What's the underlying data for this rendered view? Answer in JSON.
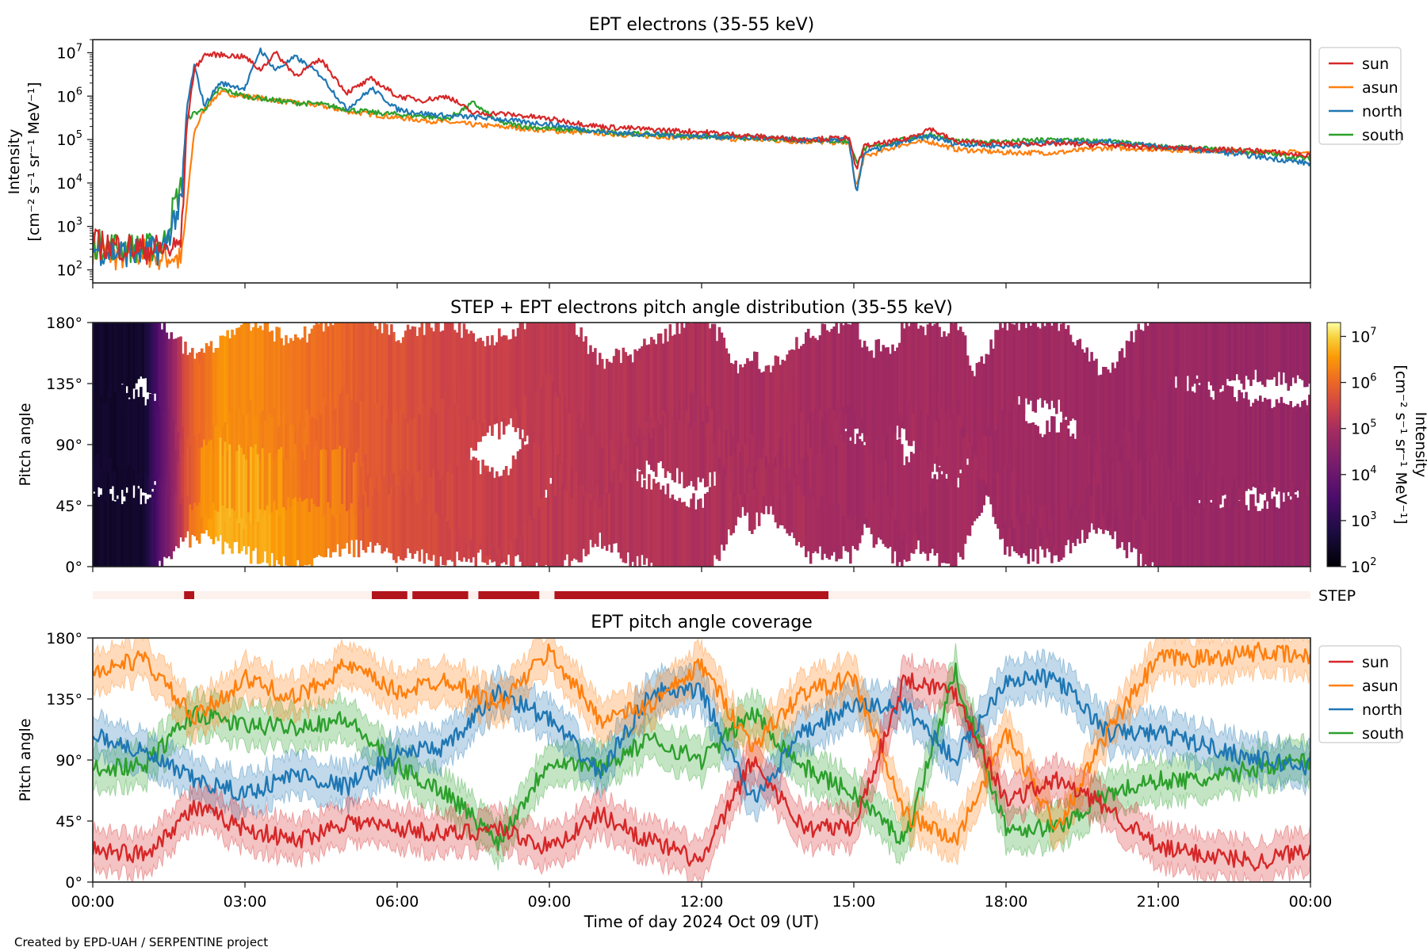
{
  "figure": {
    "footer": "Created by EPD-UAH / SERPENTINE project",
    "xlabel": "Time of day 2024 Oct 09 (UT)",
    "x_ticks": [
      "00:00",
      "03:00",
      "06:00",
      "09:00",
      "12:00",
      "15:00",
      "18:00",
      "21:00",
      "00:00"
    ],
    "x_range_hours": [
      0,
      24
    ]
  },
  "colors": {
    "sun": "#d62728",
    "asun": "#ff7f0e",
    "north": "#1f77b4",
    "south": "#2ca02c",
    "step_on": "#b2141c",
    "step_off": "#fdf1ee"
  },
  "chart_data": [
    {
      "type": "line",
      "title": "EPT electrons (35-55 keV)",
      "ylabel_line1": "Intensity",
      "ylabel_line2": "[cm⁻² s⁻¹ sr⁻¹ MeV⁻¹]",
      "yscale": "log",
      "ylim": [
        50,
        20000000
      ],
      "y_ticks": [
        {
          "exp": "2",
          "value": 100
        },
        {
          "exp": "3",
          "value": 1000
        },
        {
          "exp": "4",
          "value": 10000
        },
        {
          "exp": "5",
          "value": 100000
        },
        {
          "exp": "6",
          "value": 1000000
        },
        {
          "exp": "7",
          "value": 10000000
        }
      ],
      "legend": [
        "sun",
        "asun",
        "north",
        "south"
      ],
      "legend_position": "outside-right-top",
      "x": [
        0,
        0.5,
        1.0,
        1.4,
        1.6,
        1.75,
        1.85,
        2.0,
        2.2,
        2.5,
        3.0,
        3.3,
        3.6,
        4.0,
        4.5,
        5.0,
        5.5,
        6.0,
        6.5,
        7.0,
        7.5,
        8.0,
        8.5,
        9.0,
        10.0,
        11.0,
        12.0,
        13.0,
        14.0,
        14.9,
        15.05,
        15.2,
        16.0,
        16.5,
        17.0,
        18.0,
        19.0,
        20.0,
        21.0,
        22.0,
        23.0,
        24.0
      ],
      "series": [
        {
          "name": "sun",
          "values": [
            400,
            350,
            300,
            300,
            300,
            500,
            200000,
            4000000,
            9000000,
            9000000,
            8000000,
            4000000,
            10000000,
            3000000,
            7000000,
            1200000,
            2500000,
            1000000,
            800000,
            1000000,
            400000,
            400000,
            350000,
            300000,
            200000,
            170000,
            150000,
            120000,
            100000,
            110000,
            20000,
            70000,
            100000,
            180000,
            90000,
            80000,
            80000,
            75000,
            65000,
            60000,
            55000,
            42000
          ]
        },
        {
          "name": "asun",
          "values": [
            300,
            200,
            250,
            200,
            200,
            150,
            3000,
            150000,
            500000,
            1200000,
            1000000,
            900000,
            800000,
            700000,
            600000,
            450000,
            380000,
            320000,
            280000,
            250000,
            220000,
            200000,
            180000,
            160000,
            140000,
            120000,
            110000,
            100000,
            90000,
            85000,
            8000,
            40000,
            80000,
            90000,
            60000,
            50000,
            50000,
            65000,
            60000,
            55000,
            52000,
            50000
          ]
        },
        {
          "name": "north",
          "values": [
            300,
            250,
            250,
            300,
            1500,
            3000,
            500000,
            5000000,
            600000,
            2000000,
            1500000,
            12000000,
            4000000,
            8000000,
            3000000,
            500000,
            1500000,
            500000,
            400000,
            350000,
            330000,
            300000,
            250000,
            230000,
            150000,
            130000,
            120000,
            110000,
            95000,
            100000,
            6000,
            50000,
            90000,
            120000,
            80000,
            70000,
            90000,
            90000,
            70000,
            55000,
            40000,
            28000
          ]
        },
        {
          "name": "south",
          "values": [
            400,
            350,
            300,
            400,
            3000,
            8000,
            300000,
            400000,
            500000,
            1500000,
            1000000,
            900000,
            800000,
            700000,
            650000,
            500000,
            420000,
            380000,
            350000,
            300000,
            700000,
            250000,
            200000,
            180000,
            150000,
            130000,
            120000,
            110000,
            100000,
            90000,
            30000,
            60000,
            100000,
            130000,
            90000,
            90000,
            100000,
            90000,
            70000,
            60000,
            50000,
            35000
          ]
        }
      ]
    },
    {
      "type": "heatmap",
      "title": "STEP + EPT electrons pitch angle distribution (35-55 keV)",
      "ylabel": "Pitch angle",
      "ylim": [
        0,
        180
      ],
      "y_ticks": [
        "0°",
        "45°",
        "90°",
        "135°",
        "180°"
      ],
      "y_tick_values": [
        0,
        45,
        90,
        135,
        180
      ],
      "colorbar": {
        "label_line1": "Intensity",
        "label_line2": "[cm⁻² s⁻¹ sr⁻¹ MeV⁻¹]",
        "scale": "log",
        "range": [
          100,
          20000000
        ],
        "ticks": [
          {
            "exp": "2",
            "value": 100
          },
          {
            "exp": "3",
            "value": 1000
          },
          {
            "exp": "4",
            "value": 10000
          },
          {
            "exp": "5",
            "value": 100000
          },
          {
            "exp": "6",
            "value": 1000000
          },
          {
            "exp": "7",
            "value": 10000000
          }
        ],
        "colormap": "inferno"
      },
      "x": [
        0,
        1,
        1.85,
        2.5,
        3.5,
        5.0,
        6.5,
        8.0,
        10.0,
        12.0,
        14.0,
        15.0,
        16.0,
        18.0,
        20.0,
        22.0,
        24.0
      ],
      "intensity": [
        300,
        300,
        500000,
        3000000,
        2000000,
        800000,
        400000,
        250000,
        150000,
        120000,
        100000,
        80000,
        90000,
        80000,
        70000,
        60000,
        50000
      ]
    },
    {
      "type": "bar",
      "title": "STEP",
      "label": "STEP",
      "description": "STEP data availability intervals (hours UT)",
      "intervals_hours": [
        [
          1.8,
          2.0
        ],
        [
          5.5,
          6.2
        ],
        [
          6.3,
          7.4
        ],
        [
          7.6,
          8.8
        ],
        [
          9.1,
          14.5
        ]
      ]
    },
    {
      "type": "area",
      "title": "EPT pitch angle coverage",
      "ylabel": "Pitch angle",
      "ylim": [
        0,
        180
      ],
      "y_ticks": [
        "0°",
        "45°",
        "90°",
        "135°",
        "180°"
      ],
      "y_tick_values": [
        0,
        45,
        90,
        135,
        180
      ],
      "legend": [
        "sun",
        "asun",
        "north",
        "south"
      ],
      "legend_position": "outside-right-top",
      "band_halfwidth_deg": 15,
      "x": [
        0,
        1,
        2,
        3,
        4,
        5,
        6,
        7,
        8,
        9,
        10,
        11,
        12,
        13,
        14,
        15,
        16,
        17,
        18,
        19,
        20,
        21,
        22,
        23,
        24
      ],
      "series": [
        {
          "name": "sun",
          "values": [
            25,
            20,
            55,
            40,
            30,
            45,
            40,
            35,
            40,
            25,
            50,
            30,
            15,
            90,
            40,
            40,
            150,
            140,
            60,
            75,
            55,
            25,
            20,
            15,
            25
          ]
        },
        {
          "name": "asun",
          "values": [
            155,
            165,
            120,
            150,
            135,
            160,
            140,
            150,
            130,
            170,
            120,
            130,
            160,
            100,
            140,
            150,
            50,
            30,
            110,
            40,
            110,
            165,
            165,
            170,
            165
          ]
        },
        {
          "name": "north",
          "values": [
            110,
            95,
            75,
            65,
            80,
            70,
            95,
            100,
            140,
            120,
            80,
            140,
            140,
            60,
            110,
            130,
            130,
            90,
            150,
            150,
            110,
            110,
            100,
            90,
            85
          ]
        },
        {
          "name": "south",
          "values": [
            85,
            85,
            125,
            115,
            115,
            120,
            85,
            65,
            30,
            90,
            85,
            105,
            90,
            125,
            85,
            65,
            30,
            155,
            40,
            40,
            65,
            75,
            75,
            85,
            90
          ]
        }
      ]
    }
  ]
}
